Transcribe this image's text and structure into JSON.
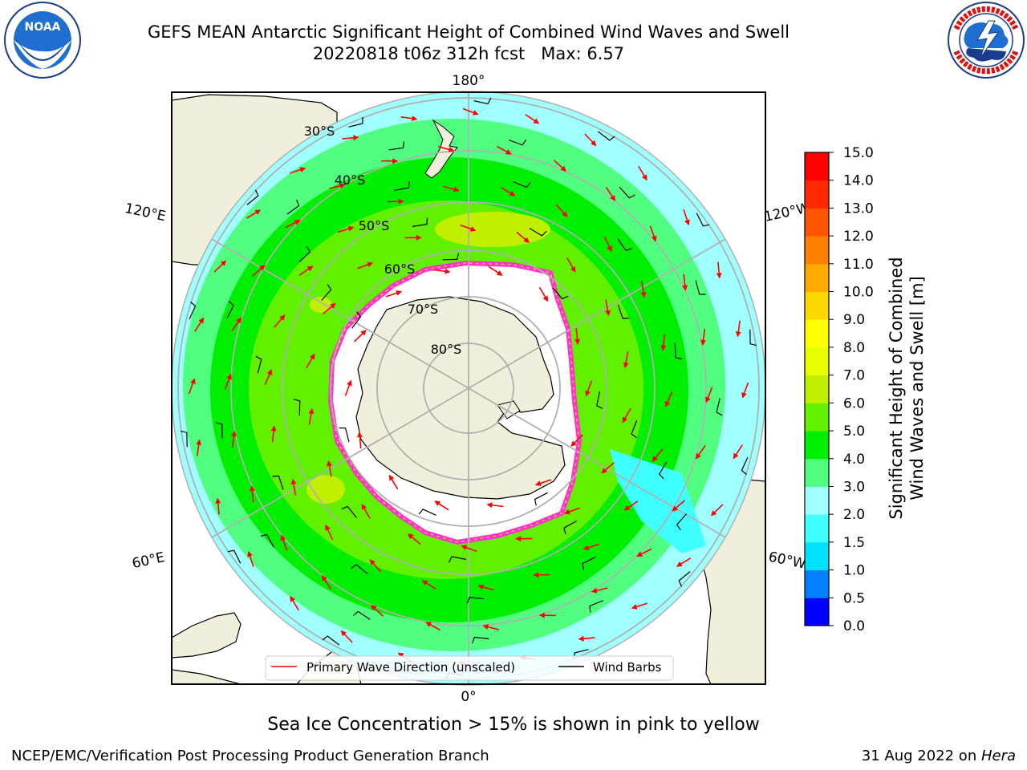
{
  "title": {
    "line1": "GEFS MEAN Antarctic Significant Height of Combined Wind Waves and Swell",
    "line2": "20220818 t06z 312h fcst   Max: 6.57"
  },
  "logos": {
    "noaa": {
      "text": "NOAA",
      "ring_text": "NATIONAL OCEANIC AND ATMOSPHERIC ADMINISTRATION · U.S. DEPARTMENT OF COMMERCE"
    },
    "nws": {
      "ring_text": "NATIONAL WEATHER SERVICE"
    }
  },
  "map": {
    "longitude_labels": [
      "180°",
      "0°",
      "120°E",
      "60°E",
      "120°W",
      "60°W"
    ],
    "latitude_labels": [
      "30°S",
      "40°S",
      "50°S",
      "60°S",
      "70°S",
      "80°S"
    ],
    "legend": {
      "wave_direction": "Primary Wave Direction (unscaled)",
      "wind_barbs": "Wind Barbs"
    }
  },
  "colorbar": {
    "label_line1": "Significant Height of Combined",
    "label_line2": "Wind Waves and Swell [m]",
    "ticks": [
      "0.0",
      "0.5",
      "1.0",
      "1.5",
      "2.0",
      "3.0",
      "4.0",
      "5.0",
      "6.0",
      "7.0",
      "8.0",
      "9.0",
      "10.0",
      "11.0",
      "12.0",
      "13.0",
      "14.0",
      "15.0"
    ],
    "colors": [
      "#0000ff",
      "#0080ff",
      "#00e0ff",
      "#40ffff",
      "#a0ffff",
      "#50ff80",
      "#00ee00",
      "#60f000",
      "#c0f000",
      "#e8ff00",
      "#ffff00",
      "#ffd800",
      "#ffaa00",
      "#ff8000",
      "#ff5500",
      "#ff2a00",
      "#ff0000"
    ]
  },
  "colors": {
    "land": "#efefdb",
    "ice": "#ffffff",
    "ice_edge": "#ff33cc",
    "wave_arrow": "#ff0000",
    "wind_barb": "#000000",
    "grid": "#b0b0b0"
  },
  "caption": "Sea Ice Concentration > 15% is shown in pink to yellow",
  "footer": {
    "left": "NCEP/EMC/Verification Post Processing Product Generation Branch",
    "right_date": "31 Aug 2022 on ",
    "right_host": "Hera"
  }
}
